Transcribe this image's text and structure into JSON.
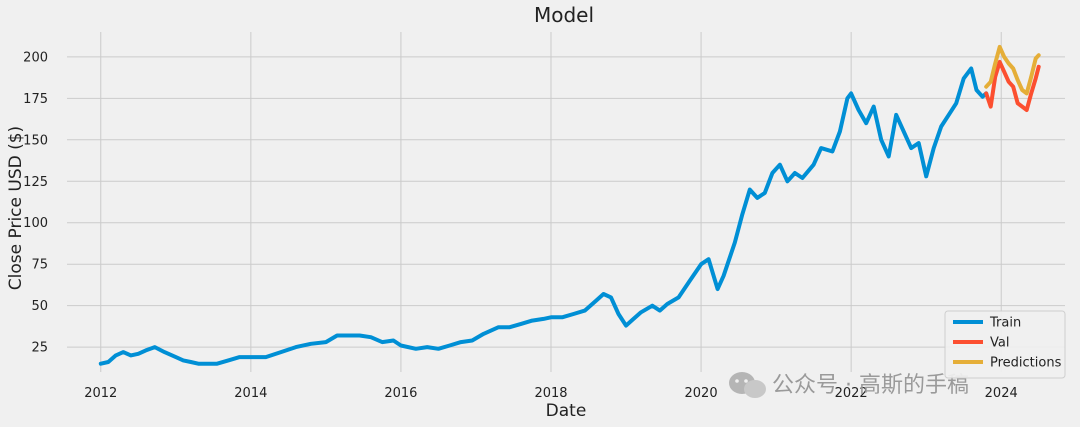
{
  "chart_data": {
    "type": "line",
    "title": "Model",
    "xlabel": "Date",
    "ylabel": "Close Price USD ($)",
    "xlim": [
      2011.55,
      2024.85
    ],
    "ylim": [
      10,
      215
    ],
    "xticks": [
      2012,
      2014,
      2016,
      2018,
      2020,
      2022,
      2024
    ],
    "xtick_labels": [
      "2012",
      "2014",
      "2016",
      "2018",
      "2020",
      "2022",
      "2024"
    ],
    "yticks": [
      25,
      50,
      75,
      100,
      125,
      150,
      175,
      200
    ],
    "ytick_labels": [
      "25",
      "50",
      "75",
      "100",
      "125",
      "150",
      "175",
      "200"
    ],
    "grid": true,
    "legend_position": "bottom-right",
    "series": [
      {
        "name": "Train",
        "color": "#008fd5",
        "points": [
          [
            2012.0,
            15
          ],
          [
            2012.1,
            16
          ],
          [
            2012.2,
            20
          ],
          [
            2012.3,
            22
          ],
          [
            2012.4,
            20
          ],
          [
            2012.5,
            21
          ],
          [
            2012.6,
            23
          ],
          [
            2012.72,
            25
          ],
          [
            2012.85,
            22
          ],
          [
            2013.0,
            19
          ],
          [
            2013.1,
            17
          ],
          [
            2013.2,
            16
          ],
          [
            2013.3,
            15
          ],
          [
            2013.4,
            15
          ],
          [
            2013.55,
            15
          ],
          [
            2013.7,
            17
          ],
          [
            2013.85,
            19
          ],
          [
            2014.0,
            19
          ],
          [
            2014.1,
            19
          ],
          [
            2014.2,
            19
          ],
          [
            2014.4,
            22
          ],
          [
            2014.6,
            25
          ],
          [
            2014.8,
            27
          ],
          [
            2015.0,
            28
          ],
          [
            2015.15,
            32
          ],
          [
            2015.3,
            32
          ],
          [
            2015.45,
            32
          ],
          [
            2015.6,
            31
          ],
          [
            2015.75,
            28
          ],
          [
            2015.9,
            29
          ],
          [
            2016.0,
            26
          ],
          [
            2016.2,
            24
          ],
          [
            2016.35,
            25
          ],
          [
            2016.5,
            24
          ],
          [
            2016.65,
            26
          ],
          [
            2016.8,
            28
          ],
          [
            2016.95,
            29
          ],
          [
            2017.1,
            33
          ],
          [
            2017.3,
            37
          ],
          [
            2017.45,
            37
          ],
          [
            2017.6,
            39
          ],
          [
            2017.75,
            41
          ],
          [
            2017.9,
            42
          ],
          [
            2018.0,
            43
          ],
          [
            2018.15,
            43
          ],
          [
            2018.3,
            45
          ],
          [
            2018.45,
            47
          ],
          [
            2018.6,
            53
          ],
          [
            2018.7,
            57
          ],
          [
            2018.8,
            55
          ],
          [
            2018.9,
            45
          ],
          [
            2019.0,
            38
          ],
          [
            2019.1,
            42
          ],
          [
            2019.2,
            46
          ],
          [
            2019.35,
            50
          ],
          [
            2019.45,
            47
          ],
          [
            2019.55,
            51
          ],
          [
            2019.7,
            55
          ],
          [
            2019.85,
            65
          ],
          [
            2020.0,
            75
          ],
          [
            2020.1,
            78
          ],
          [
            2020.22,
            60
          ],
          [
            2020.3,
            68
          ],
          [
            2020.45,
            88
          ],
          [
            2020.55,
            105
          ],
          [
            2020.65,
            120
          ],
          [
            2020.75,
            115
          ],
          [
            2020.85,
            118
          ],
          [
            2020.95,
            130
          ],
          [
            2021.05,
            135
          ],
          [
            2021.15,
            125
          ],
          [
            2021.25,
            130
          ],
          [
            2021.35,
            127
          ],
          [
            2021.5,
            135
          ],
          [
            2021.6,
            145
          ],
          [
            2021.75,
            143
          ],
          [
            2021.85,
            155
          ],
          [
            2021.95,
            175
          ],
          [
            2022.0,
            178
          ],
          [
            2022.1,
            168
          ],
          [
            2022.2,
            160
          ],
          [
            2022.3,
            170
          ],
          [
            2022.4,
            150
          ],
          [
            2022.5,
            140
          ],
          [
            2022.6,
            165
          ],
          [
            2022.7,
            155
          ],
          [
            2022.8,
            145
          ],
          [
            2022.9,
            148
          ],
          [
            2023.0,
            128
          ],
          [
            2023.1,
            145
          ],
          [
            2023.2,
            158
          ],
          [
            2023.3,
            165
          ],
          [
            2023.4,
            172
          ],
          [
            2023.5,
            187
          ],
          [
            2023.6,
            193
          ],
          [
            2023.67,
            180
          ],
          [
            2023.75,
            176
          ],
          [
            2023.8,
            178
          ]
        ]
      },
      {
        "name": "Val",
        "color": "#fc4f30",
        "points": [
          [
            2023.8,
            178
          ],
          [
            2023.86,
            170
          ],
          [
            2023.92,
            188
          ],
          [
            2023.98,
            197
          ],
          [
            2024.04,
            191
          ],
          [
            2024.1,
            185
          ],
          [
            2024.16,
            182
          ],
          [
            2024.22,
            172
          ],
          [
            2024.28,
            170
          ],
          [
            2024.34,
            168
          ],
          [
            2024.4,
            178
          ],
          [
            2024.46,
            187
          ],
          [
            2024.5,
            194
          ]
        ]
      },
      {
        "name": "Predictions",
        "color": "#e5ae38",
        "points": [
          [
            2023.8,
            182
          ],
          [
            2023.86,
            185
          ],
          [
            2023.92,
            196
          ],
          [
            2023.98,
            206
          ],
          [
            2024.04,
            200
          ],
          [
            2024.1,
            196
          ],
          [
            2024.16,
            193
          ],
          [
            2024.22,
            186
          ],
          [
            2024.28,
            180
          ],
          [
            2024.34,
            178
          ],
          [
            2024.4,
            188
          ],
          [
            2024.46,
            199
          ],
          [
            2024.5,
            201
          ]
        ]
      }
    ],
    "watermark": "公众号 · 高斯的手稿"
  }
}
